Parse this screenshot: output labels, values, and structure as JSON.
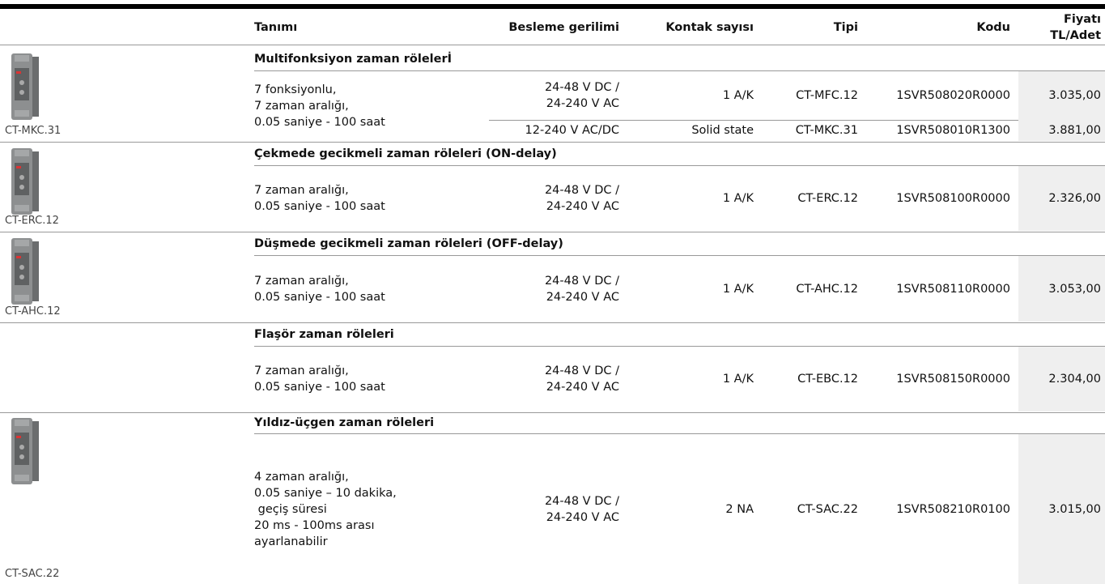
{
  "header": {
    "columns": [
      "Tanımı",
      "Besleme gerilimi",
      "Kontak sayısı",
      "Tipi",
      "Kodu"
    ],
    "price": [
      "Fiyatı",
      "TL/Adet"
    ]
  },
  "groups": [
    {
      "title": "Multifonksiyon zaman rölelerİ",
      "image_label": "CT-MKC.31",
      "description": [
        "7 fonksiyonlu,",
        "7 zaman aralığı,",
        "0.05 saniye - 100 saat"
      ],
      "rows": [
        {
          "supply": [
            "24-48 V DC /",
            "24-240 V AC"
          ],
          "contacts": "1 A/K",
          "type": "CT-MFC.12",
          "code": "1SVR508020R0000",
          "price": "3.035,00"
        },
        {
          "supply": [
            "12-240 V AC/DC"
          ],
          "contacts": "Solid state",
          "type": "CT-MKC.31",
          "code": "1SVR508010R1300",
          "price": "3.881,00"
        }
      ]
    },
    {
      "title": "Çekmede gecikmeli zaman röleleri (ON-delay)",
      "image_label": "CT-ERC.12",
      "description": [
        "7 zaman aralığı,",
        "0.05 saniye - 100 saat"
      ],
      "rows": [
        {
          "supply": [
            "24-48 V DC /",
            "24-240 V AC"
          ],
          "contacts": "1 A/K",
          "type": "CT-ERC.12",
          "code": "1SVR508100R0000",
          "price": "2.326,00"
        }
      ]
    },
    {
      "title": "Düşmede gecikmeli zaman röleleri (OFF-delay)",
      "image_label": "CT-AHC.12",
      "description": [
        "7 zaman aralığı,",
        "0.05 saniye - 100 saat"
      ],
      "rows": [
        {
          "supply": [
            "24-48 V DC /",
            "24-240 V AC"
          ],
          "contacts": "1 A/K",
          "type": "CT-AHC.12",
          "code": "1SVR508110R0000",
          "price": "3.053,00"
        }
      ]
    },
    {
      "title": "Flaşör zaman röleleri",
      "description": [
        "7 zaman aralığı,",
        "0.05 saniye - 100 saat"
      ],
      "rows": [
        {
          "supply": [
            "24-48 V DC /",
            "24-240 V AC"
          ],
          "contacts": "1 A/K",
          "type": "CT-EBC.12",
          "code": "1SVR508150R0000",
          "price": "2.304,00"
        }
      ]
    },
    {
      "title": "Yıldız-üçgen zaman röleleri",
      "image_label": "CT-SAC.22",
      "description": [
        "4 zaman aralığı,",
        "0.05 saniye – 10 dakika,",
        " geçiş süresi",
        "20 ms - 100ms arası",
        "ayarlanabilir"
      ],
      "rows": [
        {
          "supply": [
            "24-48 V DC /",
            "24-240 V AC"
          ],
          "contacts": "2 NA",
          "type": "CT-SAC.22",
          "code": "1SVR508210R0100",
          "price": "3.015,00"
        }
      ]
    }
  ]
}
